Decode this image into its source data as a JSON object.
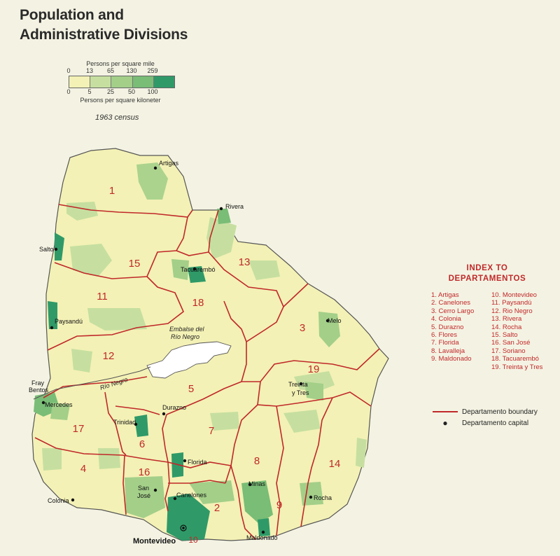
{
  "title": {
    "line1": "Population and",
    "line2": "Administrative Divisions"
  },
  "legend": {
    "mile_caption": "Persons per square mile",
    "mile_ticks": [
      "0",
      "13",
      "65",
      "130",
      "259"
    ],
    "km_ticks": [
      "0",
      "5",
      "25",
      "50",
      "100"
    ],
    "km_caption": "Persons per square kiloneter",
    "colors": [
      "#f3f1b5",
      "#c6dfa0",
      "#a3cf89",
      "#79bd76",
      "#2f9a68"
    ],
    "census": "1963 census"
  },
  "index": {
    "heading1": "INDEX TO",
    "heading2": "DEPARTAMENTOS",
    "col1": [
      "1. Artigas",
      "2. Canelones",
      "3. Cerro Largo",
      "4. Colonia",
      "5. Durazno",
      "6. Flores",
      "7. Florida",
      "8. Lavalleja",
      "9. Maldonado"
    ],
    "col2": [
      "10. Montevideo",
      "11. Paysandú",
      "12. Rio Negro",
      "13. Rivera",
      "14. Rocha",
      "15. Salto",
      "16. San José",
      "17. Soriano",
      "18. Tacuarembó",
      "19. Treinta y Tres"
    ]
  },
  "keys": {
    "boundary": "Departamento boundary",
    "capital": "Departamento capital"
  },
  "map": {
    "numbers": [
      "1",
      "2",
      "3",
      "4",
      "5",
      "6",
      "7",
      "8",
      "9",
      "10",
      "11",
      "12",
      "13",
      "14",
      "15",
      "16",
      "17",
      "18",
      "19"
    ],
    "cities": [
      "Artigas",
      "Rivera",
      "Salto",
      "Tacuarembó",
      "Melo",
      "Paysandú",
      "Treinta",
      "y Tres",
      "Fray",
      "Bentos",
      "Mercedes",
      "Durazno",
      "Trinidad",
      "Florida",
      "Minas",
      "San",
      "José",
      "Canelones",
      "Rocha",
      "Colonia",
      "Maldonado",
      "Montevideo"
    ],
    "water": [
      "Embalse del",
      "Río Negro",
      "Río Negro"
    ]
  }
}
